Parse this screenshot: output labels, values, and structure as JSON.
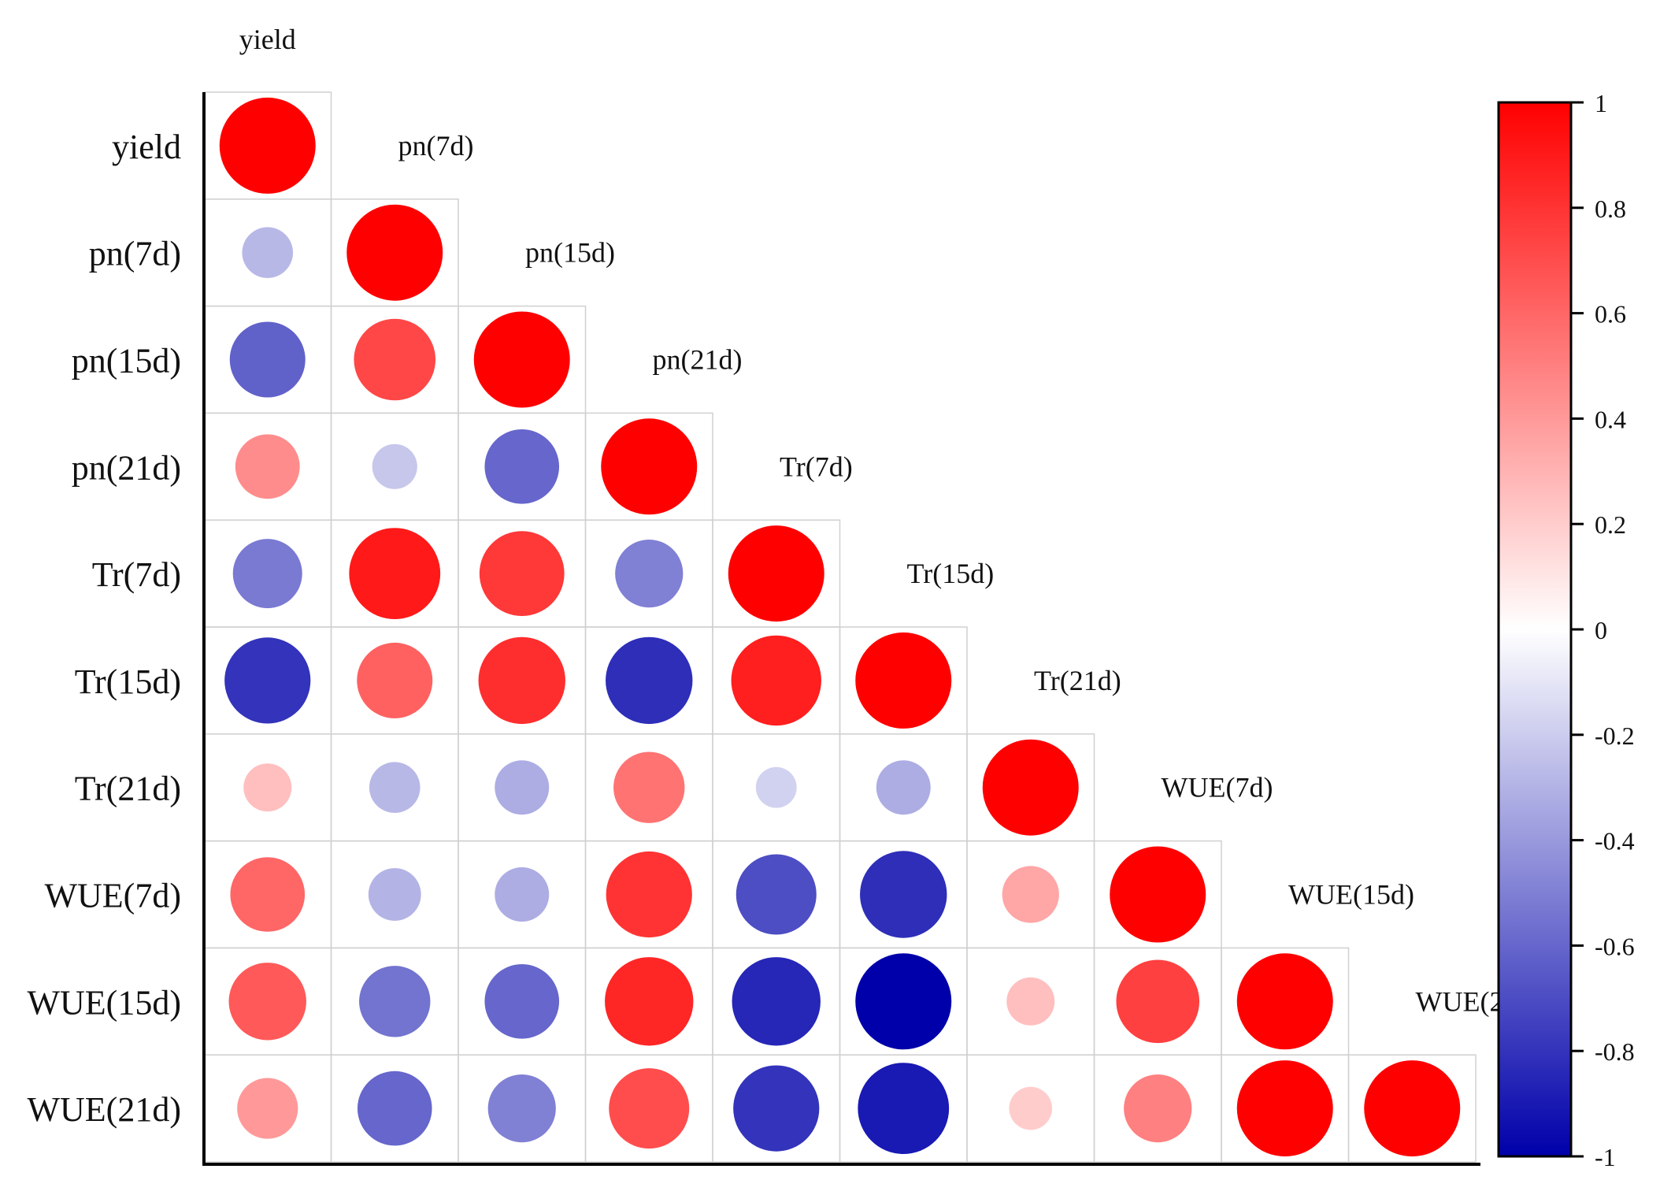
{
  "chart_data": {
    "type": "heatmap",
    "title": "",
    "variables": [
      "yield",
      "pn(7d)",
      "pn(15d)",
      "pn(21d)",
      "Tr(7d)",
      "Tr(15d)",
      "Tr(21d)",
      "WUE(7d)",
      "WUE(15d)",
      "WUE(21d)"
    ],
    "matrix_lower": [
      [
        1.0
      ],
      [
        -0.28,
        1.0
      ],
      [
        -0.62,
        0.72,
        1.0
      ],
      [
        0.45,
        -0.22,
        -0.6,
        1.0
      ],
      [
        -0.52,
        0.9,
        0.78,
        -0.5,
        1.0
      ],
      [
        -0.8,
        0.62,
        0.82,
        -0.82,
        0.88,
        1.0
      ],
      [
        0.25,
        -0.28,
        -0.32,
        0.55,
        -0.18,
        -0.32,
        1.0
      ],
      [
        0.6,
        -0.3,
        -0.32,
        0.8,
        -0.7,
        -0.82,
        0.35,
        1.0
      ],
      [
        0.65,
        -0.55,
        -0.6,
        0.85,
        -0.85,
        -1.0,
        0.25,
        0.75,
        1.0
      ],
      [
        0.4,
        -0.6,
        -0.5,
        0.7,
        -0.8,
        -0.9,
        0.2,
        0.5,
        1.0,
        1.0
      ]
    ],
    "color_scale": {
      "min": -1,
      "max": 1,
      "ticks": [
        "1",
        "0.8",
        "0.6",
        "0.4",
        "0.2",
        "0",
        "-0.2",
        "-0.4",
        "-0.6",
        "-0.8",
        "-1"
      ],
      "colors": {
        "negative": "#0000aa",
        "zero": "#ffffff",
        "positive": "#ff0000"
      }
    },
    "grid": true,
    "legend_position": "right"
  }
}
